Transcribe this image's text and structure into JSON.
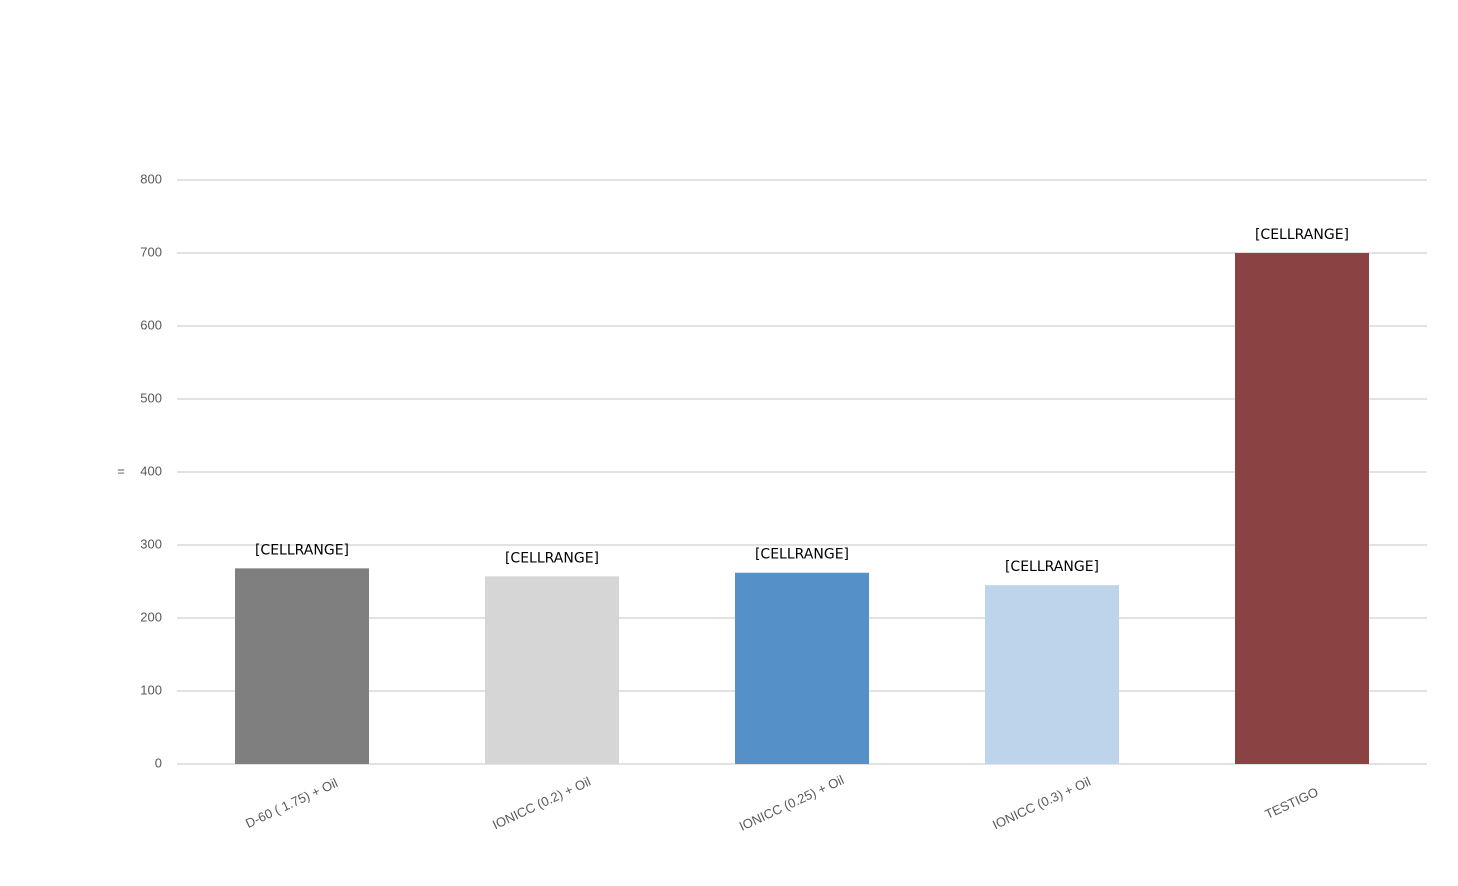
{
  "chart_data": {
    "type": "bar",
    "y_label": "=",
    "categories": [
      "D-60 ( 1.75) + Oil",
      "IONICC (0.2) + Oil",
      "IONICC (0.25) + Oil",
      "IONICC (0.3) + Oil",
      "TESTIGO"
    ],
    "values": [
      268,
      257,
      262,
      245,
      700
    ],
    "data_labels": [
      "[CELLRANGE]",
      "[CELLRANGE]",
      "[CELLRANGE]",
      "[CELLRANGE]",
      "[CELLRANGE]"
    ],
    "colors": [
      "#7f7f7f",
      "#d6d6d6",
      "#5590c8",
      "#bdd4ea",
      "#8b4242"
    ],
    "ylim": [
      0,
      800
    ],
    "yticks": [
      0,
      100,
      200,
      300,
      400,
      500,
      600,
      700,
      800
    ],
    "grid": true
  }
}
